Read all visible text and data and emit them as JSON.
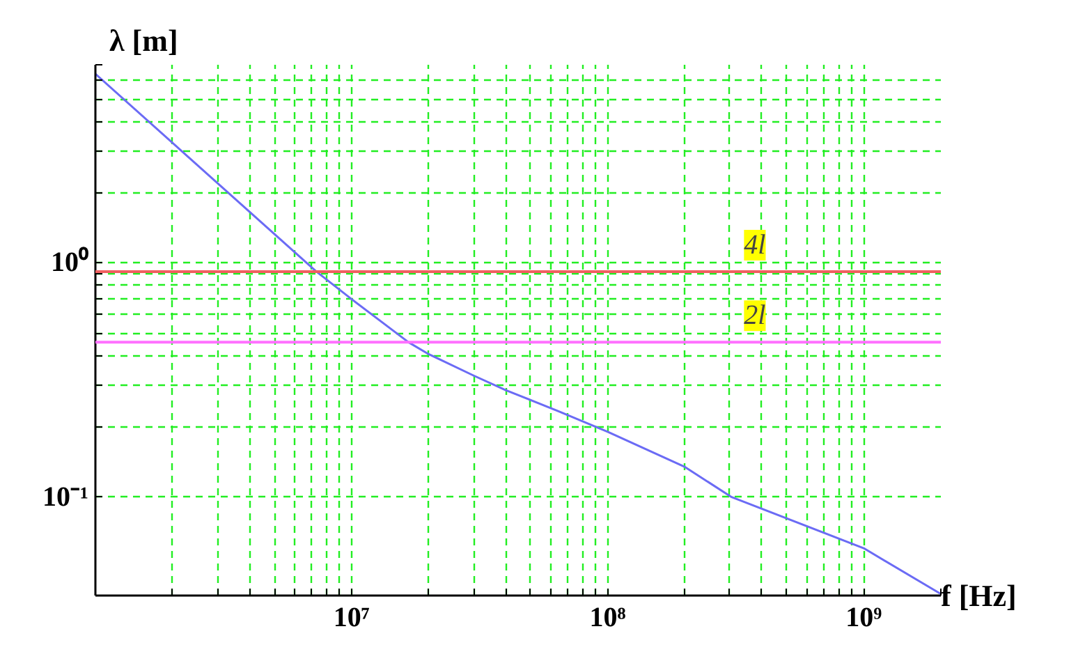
{
  "chart_data": {
    "type": "line",
    "xlabel": "f [Hz]",
    "ylabel": "λ [m]",
    "log": "xy",
    "grid": true,
    "marker": "none",
    "line_style": "solid",
    "xlim": [
      1000000,
      2000000000
    ],
    "ylim": [
      0.038,
      7
    ],
    "xticks": [
      {
        "value": 2000000,
        "label": null
      },
      {
        "value": 3000000,
        "label": null
      },
      {
        "value": 4000000,
        "label": null
      },
      {
        "value": 5000000,
        "label": null
      },
      {
        "value": 6000000,
        "label": null
      },
      {
        "value": 7000000,
        "label": null
      },
      {
        "value": 8000000,
        "label": null
      },
      {
        "value": 9000000,
        "label": null
      },
      {
        "value": 10000000,
        "label": "10⁷"
      },
      {
        "value": 20000000,
        "label": null
      },
      {
        "value": 30000000,
        "label": null
      },
      {
        "value": 40000000,
        "label": null
      },
      {
        "value": 50000000,
        "label": null
      },
      {
        "value": 60000000,
        "label": null
      },
      {
        "value": 70000000,
        "label": null
      },
      {
        "value": 80000000,
        "label": null
      },
      {
        "value": 90000000,
        "label": null
      },
      {
        "value": 100000000,
        "label": "10⁸"
      },
      {
        "value": 200000000,
        "label": null
      },
      {
        "value": 300000000,
        "label": null
      },
      {
        "value": 400000000,
        "label": null
      },
      {
        "value": 500000000,
        "label": null
      },
      {
        "value": 600000000,
        "label": null
      },
      {
        "value": 700000000,
        "label": null
      },
      {
        "value": 800000000,
        "label": null
      },
      {
        "value": 900000000,
        "label": null
      },
      {
        "value": 1000000000,
        "label": "10⁹"
      },
      {
        "value": 2000000000,
        "label": null
      }
    ],
    "yticks": [
      {
        "value": 0.1,
        "label": "10⁻¹"
      },
      {
        "value": 0.2,
        "label": null
      },
      {
        "value": 0.3,
        "label": null
      },
      {
        "value": 0.4,
        "label": null
      },
      {
        "value": 0.5,
        "label": null
      },
      {
        "value": 0.6,
        "label": null
      },
      {
        "value": 0.7,
        "label": null
      },
      {
        "value": 0.8,
        "label": null
      },
      {
        "value": 0.9,
        "label": null
      },
      {
        "value": 1,
        "label": "10⁰"
      },
      {
        "value": 2,
        "label": null
      },
      {
        "value": 3,
        "label": null
      },
      {
        "value": 4,
        "label": null
      },
      {
        "value": 5,
        "label": null
      },
      {
        "value": 6,
        "label": null
      },
      {
        "value": 7,
        "label": null
      }
    ],
    "series": [
      {
        "color": "#6b6bf5",
        "x": [
          1000000,
          7290000,
          10000000,
          16700000,
          19800000,
          30000000,
          40000000,
          64000000,
          100000000,
          199000000,
          305000000,
          1000000000,
          1990000000
        ],
        "values": [
          6.4,
          0.917,
          0.7,
          0.458,
          0.41,
          0.33,
          0.286,
          0.233,
          0.19,
          0.135,
          0.1,
          0.0605,
          0.0387
        ]
      }
    ],
    "ref_lines": [
      {
        "axis": "y",
        "value": 0.917,
        "color": "#f06060",
        "label": "4l"
      },
      {
        "axis": "y",
        "value": 0.458,
        "color": "#ff70ff",
        "label": "2l"
      }
    ]
  }
}
